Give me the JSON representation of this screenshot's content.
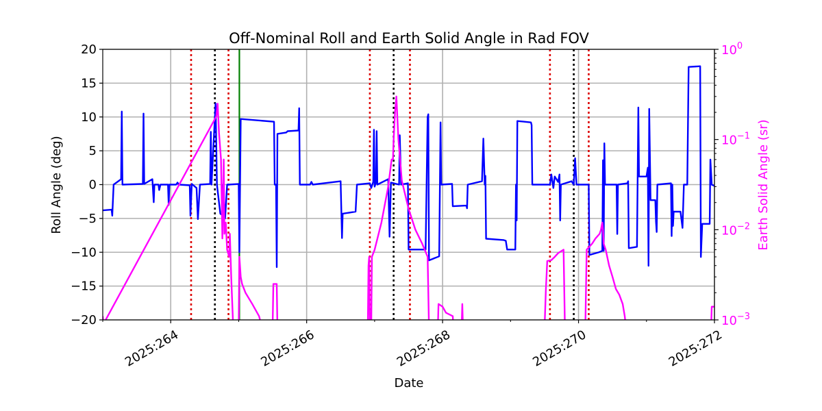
{
  "chart_data": {
    "type": "line",
    "title": "Off-Nominal Roll and Earth Solid Angle in Rad FOV",
    "xlabel": "Date",
    "ylabel": "Roll Angle (deg)",
    "y2label": "Earth Solid Angle (sr)",
    "xlim": [
      263,
      272
    ],
    "ylim": [
      -20,
      20
    ],
    "y2lim": [
      0.001,
      1
    ],
    "y2scale": "log",
    "grid": true,
    "colors": {
      "roll": "#0000ff",
      "earth": "#ff00ff",
      "red_markers": "#dd0000",
      "black_markers": "#000000",
      "green_marker": "#008000",
      "grid": "#b0b0b0"
    },
    "x_ticks": [
      {
        "value": 264,
        "label": "2025:264"
      },
      {
        "value": 266,
        "label": "2025:266"
      },
      {
        "value": 268,
        "label": "2025:268"
      },
      {
        "value": 270,
        "label": "2025:270"
      },
      {
        "value": 272,
        "label": "2025:272"
      }
    ],
    "y_ticks": [
      {
        "value": 20,
        "label": "20"
      },
      {
        "value": 15,
        "label": "15"
      },
      {
        "value": 10,
        "label": "10"
      },
      {
        "value": 5,
        "label": "5"
      },
      {
        "value": 0,
        "label": "0"
      },
      {
        "value": -5,
        "label": "−5"
      },
      {
        "value": -10,
        "label": "−10"
      },
      {
        "value": -15,
        "label": "−15"
      },
      {
        "value": -20,
        "label": "−20"
      }
    ],
    "y2_ticks": [
      {
        "value": 1,
        "base": "10",
        "exp": "0"
      },
      {
        "value": 0.1,
        "base": "10",
        "exp": "−1"
      },
      {
        "value": 0.01,
        "base": "10",
        "exp": "−2"
      },
      {
        "value": 0.001,
        "base": "10",
        "exp": "−3"
      }
    ],
    "vlines": {
      "red_dotted": [
        264.3,
        264.85,
        266.93,
        267.52,
        269.58,
        270.15
      ],
      "black_dotted": [
        264.65,
        267.28,
        269.93
      ],
      "green_solid": [
        265.01
      ]
    },
    "series": [
      {
        "axis": "left",
        "values": [
          [
            263.0,
            -3.8
          ],
          [
            263.13,
            -3.7
          ],
          [
            263.14,
            -4.6
          ],
          [
            263.16,
            0.0
          ],
          [
            263.27,
            0.8
          ],
          [
            263.28,
            10.8
          ],
          [
            263.29,
            0.0
          ],
          [
            263.59,
            0.1
          ],
          [
            263.6,
            10.5
          ],
          [
            263.61,
            0.1
          ],
          [
            263.73,
            0.8
          ],
          [
            263.75,
            -2.6
          ],
          [
            263.76,
            0.0
          ],
          [
            263.82,
            0.0
          ],
          [
            263.83,
            -0.8
          ],
          [
            263.85,
            0.0
          ],
          [
            263.96,
            0.0
          ],
          [
            263.97,
            -3.0
          ],
          [
            263.98,
            0.0
          ],
          [
            264.08,
            0.0
          ],
          [
            264.1,
            0.3
          ],
          [
            264.12,
            0.0
          ],
          [
            264.28,
            -0.1
          ],
          [
            264.29,
            -4.6
          ],
          [
            264.31,
            0.1
          ],
          [
            264.38,
            -0.5
          ],
          [
            264.4,
            -5.1
          ],
          [
            264.43,
            0.0
          ],
          [
            264.58,
            0.1
          ],
          [
            264.59,
            7.8
          ],
          [
            264.6,
            0.0
          ],
          [
            264.66,
            12.0
          ],
          [
            264.68,
            0.0
          ],
          [
            264.73,
            -4.3
          ],
          [
            264.76,
            -4.5
          ],
          [
            264.77,
            0.0
          ],
          [
            264.8,
            -5.0
          ],
          [
            264.83,
            0.0
          ],
          [
            264.85,
            0.0
          ],
          [
            265.0,
            0.1
          ],
          [
            265.01,
            -10.0
          ],
          [
            265.03,
            9.7
          ],
          [
            265.52,
            9.3
          ],
          [
            265.53,
            0.0
          ],
          [
            265.55,
            0.0
          ],
          [
            265.56,
            -12.2
          ],
          [
            265.57,
            7.5
          ],
          [
            265.7,
            7.7
          ],
          [
            265.72,
            7.9
          ],
          [
            265.88,
            8.0
          ],
          [
            265.89,
            11.3
          ],
          [
            265.9,
            0.0
          ],
          [
            266.05,
            0.0
          ],
          [
            266.07,
            0.4
          ],
          [
            266.09,
            0.0
          ],
          [
            266.5,
            0.5
          ],
          [
            266.52,
            -7.9
          ],
          [
            266.53,
            -4.3
          ],
          [
            266.72,
            -4.0
          ],
          [
            266.74,
            0.0
          ],
          [
            266.93,
            0.2
          ],
          [
            266.95,
            -0.5
          ],
          [
            266.98,
            0.4
          ],
          [
            266.99,
            8.1
          ],
          [
            267.0,
            -0.3
          ],
          [
            267.02,
            0.3
          ],
          [
            267.03,
            7.9
          ],
          [
            267.04,
            0.0
          ],
          [
            267.2,
            0.8
          ],
          [
            267.22,
            -7.7
          ],
          [
            267.24,
            0.3
          ],
          [
            267.28,
            0.2
          ],
          [
            267.36,
            0.0
          ],
          [
            267.37,
            7.3
          ],
          [
            267.39,
            0.0
          ],
          [
            267.49,
            0.2
          ],
          [
            267.5,
            -9.6
          ],
          [
            267.75,
            -9.6
          ],
          [
            267.78,
            10.0
          ],
          [
            267.79,
            10.4
          ],
          [
            267.8,
            -11.2
          ],
          [
            267.95,
            -10.6
          ],
          [
            267.97,
            9.2
          ],
          [
            267.98,
            0.0
          ],
          [
            268.14,
            0.1
          ],
          [
            268.15,
            -3.2
          ],
          [
            268.35,
            -3.1
          ],
          [
            268.36,
            -3.5
          ],
          [
            268.37,
            0.0
          ],
          [
            268.58,
            0.5
          ],
          [
            268.6,
            6.8
          ],
          [
            268.62,
            0.0
          ],
          [
            268.63,
            1.3
          ],
          [
            268.64,
            -8.0
          ],
          [
            268.9,
            -8.2
          ],
          [
            268.93,
            -8.3
          ],
          [
            268.95,
            -9.6
          ],
          [
            269.07,
            -9.6
          ],
          [
            269.08,
            0.0
          ],
          [
            269.09,
            -5.3
          ],
          [
            269.1,
            9.4
          ],
          [
            269.3,
            9.2
          ],
          [
            269.31,
            8.8
          ],
          [
            269.32,
            0.0
          ],
          [
            269.58,
            0.0
          ],
          [
            269.6,
            1.5
          ],
          [
            269.63,
            -0.5
          ],
          [
            269.65,
            1.2
          ],
          [
            269.7,
            0.4
          ],
          [
            269.72,
            1.5
          ],
          [
            269.73,
            -5.3
          ],
          [
            269.74,
            0.0
          ],
          [
            269.9,
            0.5
          ],
          [
            269.91,
            0.3
          ],
          [
            269.93,
            0.0
          ],
          [
            269.95,
            3.9
          ],
          [
            269.97,
            0.0
          ],
          [
            270.15,
            0.0
          ],
          [
            270.16,
            -10.4
          ],
          [
            270.3,
            -10.0
          ],
          [
            270.35,
            -9.8
          ],
          [
            270.36,
            3.6
          ],
          [
            270.37,
            -9.8
          ],
          [
            270.38,
            6.1
          ],
          [
            270.39,
            0.0
          ],
          [
            270.56,
            0.0
          ],
          [
            270.57,
            -7.3
          ],
          [
            270.58,
            0.0
          ],
          [
            270.72,
            0.2
          ],
          [
            270.73,
            0.5
          ],
          [
            270.74,
            -9.4
          ],
          [
            270.86,
            -9.2
          ],
          [
            270.88,
            11.4
          ],
          [
            270.89,
            1.2
          ],
          [
            271.0,
            1.2
          ],
          [
            271.02,
            2.5
          ],
          [
            271.03,
            -12.0
          ],
          [
            271.04,
            11.2
          ],
          [
            271.06,
            -2.3
          ],
          [
            271.13,
            -2.3
          ],
          [
            271.14,
            -5.5
          ],
          [
            271.15,
            -7.0
          ],
          [
            271.16,
            0.0
          ],
          [
            271.36,
            0.2
          ],
          [
            271.37,
            -7.6
          ],
          [
            271.38,
            0.0
          ],
          [
            271.39,
            -6.1
          ],
          [
            271.4,
            -4.0
          ],
          [
            271.42,
            -4.0
          ],
          [
            271.5,
            -4.0
          ],
          [
            271.53,
            -6.4
          ],
          [
            271.55,
            0.0
          ],
          [
            271.6,
            0.0
          ],
          [
            271.62,
            17.4
          ],
          [
            271.79,
            17.5
          ],
          [
            271.8,
            -10.7
          ],
          [
            271.82,
            -5.8
          ],
          [
            271.93,
            -5.8
          ],
          [
            271.94,
            3.7
          ],
          [
            271.96,
            0.0
          ],
          [
            272.0,
            -0.2
          ]
        ]
      },
      {
        "axis": "right",
        "values": [
          [
            263.0,
            0.0011
          ],
          [
            263.01,
            0.0009
          ],
          [
            264.67,
            0.18
          ],
          [
            264.69,
            0.25
          ],
          [
            264.71,
            0.12
          ],
          [
            264.74,
            0.06
          ],
          [
            264.76,
            0.008
          ],
          [
            264.78,
            0.06
          ],
          [
            264.79,
            0.009
          ],
          [
            264.81,
            0.012
          ],
          [
            264.83,
            0.006
          ],
          [
            264.86,
            0.005
          ],
          [
            264.87,
            0.009
          ],
          [
            264.89,
            0.003
          ],
          [
            264.92,
            0.0008
          ],
          [
            265.0,
            0.0008
          ],
          [
            265.01,
            0.005
          ],
          [
            265.03,
            0.003
          ],
          [
            265.05,
            0.0025
          ],
          [
            265.1,
            0.002
          ],
          [
            265.2,
            0.0015
          ],
          [
            265.3,
            0.0011
          ],
          [
            265.33,
            0.0009
          ],
          [
            265.5,
            0.0009
          ],
          [
            265.51,
            0.0025
          ],
          [
            265.56,
            0.0025
          ],
          [
            265.57,
            0.0008
          ],
          [
            266.9,
            0.0008
          ],
          [
            266.91,
            0.004
          ],
          [
            266.92,
            0.005
          ],
          [
            266.93,
            0.0008
          ],
          [
            266.95,
            0.0008
          ],
          [
            266.96,
            0.005
          ],
          [
            267.0,
            0.006
          ],
          [
            267.1,
            0.012
          ],
          [
            267.2,
            0.03
          ],
          [
            267.25,
            0.06
          ],
          [
            267.27,
            0.06
          ],
          [
            267.28,
            0.1
          ],
          [
            267.3,
            0.2
          ],
          [
            267.32,
            0.3
          ],
          [
            267.35,
            0.1
          ],
          [
            267.4,
            0.035
          ],
          [
            267.5,
            0.017
          ],
          [
            267.6,
            0.01
          ],
          [
            267.7,
            0.007
          ],
          [
            267.78,
            0.005
          ],
          [
            267.8,
            0.0008
          ],
          [
            267.93,
            0.0008
          ],
          [
            267.94,
            0.0015
          ],
          [
            268.0,
            0.0014
          ],
          [
            268.05,
            0.0012
          ],
          [
            268.15,
            0.0011
          ],
          [
            268.16,
            0.0008
          ],
          [
            268.28,
            0.0008
          ],
          [
            268.29,
            0.0015
          ],
          [
            268.3,
            0.0008
          ],
          [
            268.5,
            0.0008
          ],
          [
            269.5,
            0.0008
          ],
          [
            269.52,
            0.0022
          ],
          [
            269.54,
            0.0045
          ],
          [
            269.6,
            0.0046
          ],
          [
            269.65,
            0.005
          ],
          [
            269.7,
            0.0055
          ],
          [
            269.78,
            0.006
          ],
          [
            269.8,
            0.0008
          ],
          [
            270.1,
            0.0008
          ],
          [
            270.12,
            0.006
          ],
          [
            270.2,
            0.007
          ],
          [
            270.25,
            0.008
          ],
          [
            270.31,
            0.009
          ],
          [
            270.33,
            0.01
          ],
          [
            270.35,
            0.012
          ],
          [
            270.36,
            0.01
          ],
          [
            270.37,
            0.007
          ],
          [
            270.4,
            0.006
          ],
          [
            270.45,
            0.004
          ],
          [
            270.5,
            0.003
          ],
          [
            270.55,
            0.0022
          ],
          [
            270.6,
            0.0019
          ],
          [
            270.65,
            0.0015
          ],
          [
            270.68,
            0.0011
          ],
          [
            270.7,
            0.0008
          ],
          [
            271.95,
            0.0008
          ],
          [
            271.96,
            0.0014
          ],
          [
            272.0,
            0.0014
          ]
        ]
      }
    ]
  }
}
